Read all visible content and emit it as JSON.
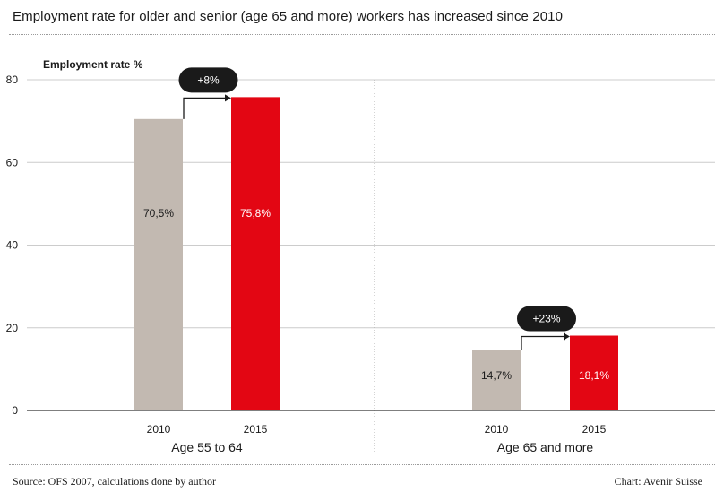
{
  "title": "Employment rate for older and senior (age 65 and more) workers has increased since 2010",
  "source": "Source: OFS 2007, calculations done by author",
  "credit": "Chart: Avenir Suisse",
  "colors": {
    "y2010": "#c2b9b1",
    "y2015": "#e30613",
    "badge": "#1a1a1a",
    "grid": "#cccccc",
    "axis": "#555555"
  },
  "chart_data": {
    "type": "bar",
    "ylabel": "Employment rate %",
    "ylim": [
      0,
      80
    ],
    "yticks": [
      0,
      20,
      40,
      60,
      80
    ],
    "grid": true,
    "groups": [
      {
        "name": "Age 55 to 64",
        "bars": [
          {
            "category": "2010",
            "value": 70.5,
            "label": "70,5%"
          },
          {
            "category": "2015",
            "value": 75.8,
            "label": "75,8%"
          }
        ],
        "change": "+8%"
      },
      {
        "name": "Age 65 and more",
        "bars": [
          {
            "category": "2010",
            "value": 14.7,
            "label": "14,7%"
          },
          {
            "category": "2015",
            "value": 18.1,
            "label": "18,1%"
          }
        ],
        "change": "+23%"
      }
    ]
  }
}
